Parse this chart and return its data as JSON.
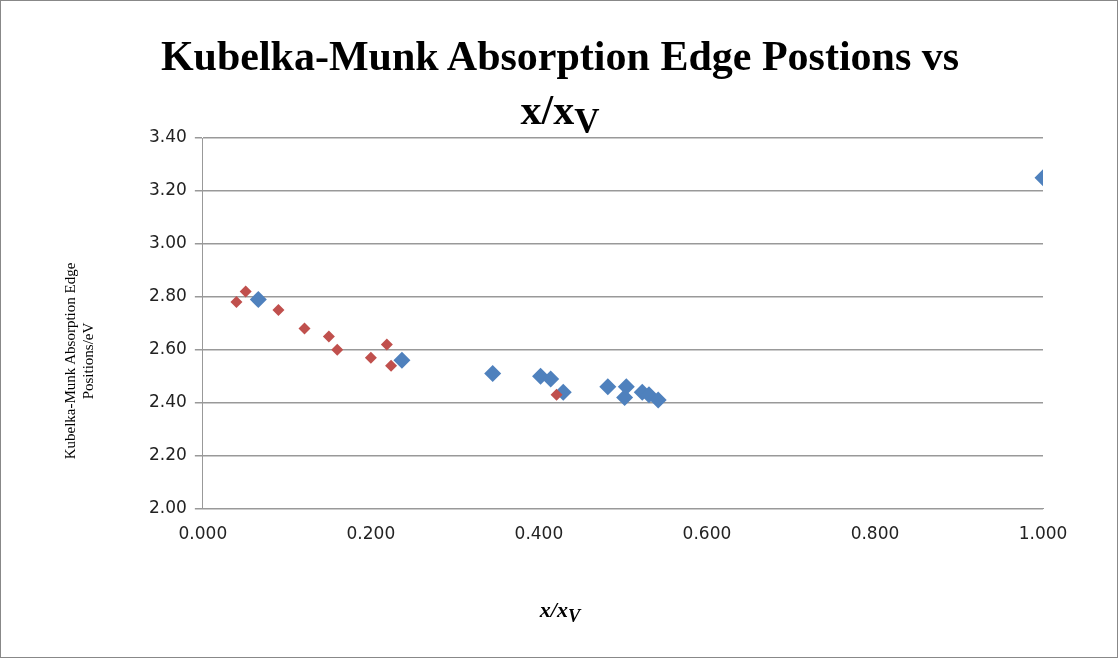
{
  "chart_data": {
    "type": "scatter",
    "title": "Kubelka-Munk Absorption Edge Postions vs x/x$_{V}$",
    "xlabel": "x/x$_{V}$",
    "ylabel": "Kubelka-Munk Absorption Edge Positions/eV",
    "series": [
      {
        "color": "#c0504d",
        "x": [
          0.04,
          0.051,
          0.09,
          0.121,
          0.15,
          0.16,
          0.2,
          0.219,
          0.224,
          0.421
        ],
        "values": [
          2.78,
          2.82,
          2.75,
          2.68,
          2.65,
          2.6,
          2.57,
          2.62,
          2.54,
          2.43
        ]
      },
      {
        "color": "#4f81bd",
        "x": [
          0.066,
          0.237,
          0.345,
          0.402,
          0.414,
          0.429,
          0.482,
          0.502,
          0.504,
          0.523,
          0.531,
          0.542,
          1.0
        ],
        "values": [
          2.79,
          2.56,
          2.51,
          2.5,
          2.49,
          2.44,
          2.46,
          2.42,
          2.46,
          2.44,
          2.43,
          2.41,
          3.25
        ]
      }
    ],
    "xlim": [
      0,
      1
    ],
    "xticks": [
      {
        "value": 0,
        "label": "0.000"
      },
      {
        "value": 0.2,
        "label": "0.200"
      },
      {
        "value": 0.4,
        "label": "0.400"
      },
      {
        "value": 0.6,
        "label": "0.600"
      },
      {
        "value": 0.8,
        "label": "0.800"
      },
      {
        "value": 1,
        "label": "1.000"
      }
    ],
    "ylim": [
      2,
      3.4
    ],
    "yticks": [
      {
        "value": 2,
        "label": "2.00"
      },
      {
        "value": 2.2,
        "label": "2.20"
      },
      {
        "value": 2.4,
        "label": "2.40"
      },
      {
        "value": 2.6,
        "label": "2.60"
      },
      {
        "value": 2.8,
        "label": "2.80"
      },
      {
        "value": 3,
        "label": "3.00"
      },
      {
        "value": 3.2,
        "label": "3.20"
      },
      {
        "value": 3.4,
        "label": "3.40"
      }
    ],
    "grid": "y",
    "legend": false,
    "marker": "diamond"
  }
}
